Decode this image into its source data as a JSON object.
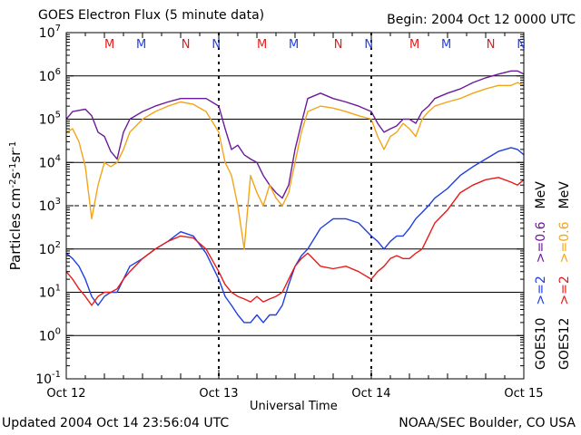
{
  "header": {
    "title": "GOES Electron Flux (5 minute data)",
    "begin": "Begin: 2004 Oct 12 0000 UTC"
  },
  "footer": {
    "updated": "Updated 2004 Oct 14 23:56:04 UTC",
    "credit": "NOAA/SEC Boulder, CO USA"
  },
  "colors": {
    "goes10_2mev": "#1f3fe0",
    "goes10_06mev": "#6a1a9a",
    "goes12_2mev": "#e81a1a",
    "goes12_06mev": "#f2a51a"
  },
  "chart_data": {
    "type": "line",
    "title": "GOES Electron Flux (5 minute data)",
    "xlabel": "Universal Time",
    "ylabel": "Particles cm⁻²s⁻¹sr⁻¹",
    "yscale": "log",
    "ylim": [
      0.1,
      10000000
    ],
    "xlim": [
      0,
      72
    ],
    "x_unit": "hours since 2004 Oct 12 0000 UTC",
    "x_ticks": [
      {
        "x": 0,
        "label": "Oct 12"
      },
      {
        "x": 24,
        "label": "Oct 13"
      },
      {
        "x": 48,
        "label": "Oct 14"
      },
      {
        "x": 72,
        "label": "Oct 15"
      }
    ],
    "y_ticks": [
      0.1,
      1,
      10,
      100,
      1000,
      10000,
      100000,
      1000000,
      10000000
    ],
    "y_tick_labels": [
      {
        "base": "10",
        "exp": "-1"
      },
      {
        "base": "10",
        "exp": "0"
      },
      {
        "base": "10",
        "exp": "1"
      },
      {
        "base": "10",
        "exp": "2"
      },
      {
        "base": "10",
        "exp": "3"
      },
      {
        "base": "10",
        "exp": "4"
      },
      {
        "base": "10",
        "exp": "5"
      },
      {
        "base": "10",
        "exp": "6"
      },
      {
        "base": "10",
        "exp": "7"
      }
    ],
    "grid": true,
    "dashed_gridline_y": 1000,
    "markers": [
      {
        "x": 6.8,
        "label": "M",
        "color": "#e81a1a"
      },
      {
        "x": 11.8,
        "label": "M",
        "color": "#1f3fe0"
      },
      {
        "x": 18.8,
        "label": "N",
        "color": "#e81a1a"
      },
      {
        "x": 23.6,
        "label": "N",
        "color": "#1f3fe0"
      },
      {
        "x": 30.8,
        "label": "M",
        "color": "#e81a1a"
      },
      {
        "x": 35.8,
        "label": "M",
        "color": "#1f3fe0"
      },
      {
        "x": 42.8,
        "label": "N",
        "color": "#e81a1a"
      },
      {
        "x": 47.6,
        "label": "N",
        "color": "#1f3fe0"
      },
      {
        "x": 54.8,
        "label": "M",
        "color": "#e81a1a"
      },
      {
        "x": 59.8,
        "label": "M",
        "color": "#1f3fe0"
      },
      {
        "x": 66.8,
        "label": "N",
        "color": "#e81a1a"
      },
      {
        "x": 71.6,
        "label": "N",
        "color": "#1f3fe0"
      }
    ],
    "legend": [
      {
        "group": "GOES10",
        "entries": [
          {
            "text": ">=2",
            "color": "#1f3fe0"
          },
          {
            "text": ">=0.6",
            "color": "#6a1a9a"
          },
          {
            "text": "MeV",
            "color": "#000000"
          }
        ]
      },
      {
        "group": "GOES12",
        "entries": [
          {
            "text": ">=2",
            "color": "#e81a1a"
          },
          {
            "text": ">=0.6",
            "color": "#f2a51a"
          },
          {
            "text": "MeV",
            "color": "#000000"
          }
        ]
      }
    ],
    "series": [
      {
        "key": "goes10_06mev",
        "color": "#6a1a9a",
        "x": [
          0,
          1,
          2,
          3,
          4,
          5,
          6,
          7,
          8,
          9,
          10,
          12,
          14,
          16,
          18,
          20,
          22,
          24,
          25,
          26,
          27,
          28,
          29,
          30,
          31,
          32,
          33,
          34,
          35,
          36,
          37,
          38,
          40,
          42,
          44,
          46,
          48,
          49,
          50,
          51,
          52,
          53,
          54,
          55,
          56,
          57,
          58,
          60,
          62,
          64,
          66,
          68,
          70,
          71,
          72
        ],
        "y": [
          100000,
          150000,
          160000,
          170000,
          120000,
          50000,
          40000,
          18000,
          12000,
          50000,
          100000,
          150000,
          200000,
          250000,
          300000,
          300000,
          300000,
          200000,
          60000,
          20000,
          25000,
          15000,
          12000,
          10000,
          5000,
          3000,
          2000,
          1500,
          3000,
          20000,
          80000,
          300000,
          400000,
          300000,
          250000,
          200000,
          150000,
          80000,
          50000,
          60000,
          70000,
          100000,
          100000,
          80000,
          150000,
          200000,
          300000,
          400000,
          500000,
          700000,
          900000,
          1100000,
          1300000,
          1300000,
          1100000
        ]
      },
      {
        "key": "goes12_06mev",
        "color": "#f2a51a",
        "x": [
          0,
          1,
          2,
          3,
          4,
          5,
          6,
          7,
          8,
          9,
          10,
          12,
          14,
          16,
          18,
          20,
          22,
          24,
          25,
          26,
          27,
          28,
          29,
          30,
          31,
          32,
          33,
          34,
          35,
          36,
          37,
          38,
          40,
          42,
          44,
          46,
          48,
          49,
          50,
          51,
          52,
          53,
          54,
          55,
          56,
          57,
          58,
          60,
          62,
          64,
          66,
          68,
          70,
          71,
          72
        ],
        "y": [
          50000,
          60000,
          30000,
          8000,
          500,
          3000,
          10000,
          8000,
          10000,
          20000,
          50000,
          100000,
          150000,
          200000,
          250000,
          220000,
          150000,
          50000,
          10000,
          5000,
          1000,
          100,
          5000,
          2000,
          1000,
          3000,
          1500,
          1000,
          2000,
          10000,
          50000,
          150000,
          200000,
          180000,
          150000,
          120000,
          100000,
          40000,
          20000,
          40000,
          50000,
          80000,
          60000,
          40000,
          100000,
          150000,
          200000,
          250000,
          300000,
          400000,
          500000,
          600000,
          600000,
          700000,
          600000
        ]
      },
      {
        "key": "goes10_2mev",
        "color": "#1f3fe0",
        "x": [
          0,
          1,
          2,
          3,
          4,
          5,
          6,
          7,
          8,
          9,
          10,
          12,
          14,
          16,
          18,
          20,
          22,
          24,
          25,
          26,
          27,
          28,
          29,
          30,
          31,
          32,
          33,
          34,
          35,
          36,
          37,
          38,
          40,
          42,
          44,
          46,
          48,
          49,
          50,
          51,
          52,
          53,
          54,
          55,
          56,
          57,
          58,
          60,
          62,
          64,
          66,
          68,
          70,
          71,
          72
        ],
        "y": [
          80,
          60,
          40,
          20,
          8,
          5,
          8,
          10,
          10,
          20,
          40,
          60,
          100,
          150,
          250,
          200,
          80,
          20,
          8,
          5,
          3,
          2,
          2,
          3,
          2,
          3,
          3,
          5,
          15,
          40,
          70,
          100,
          300,
          500,
          500,
          400,
          200,
          150,
          100,
          150,
          200,
          200,
          300,
          500,
          700,
          1000,
          1500,
          2500,
          5000,
          8000,
          12000,
          18000,
          22000,
          20000,
          15000
        ]
      },
      {
        "key": "goes12_2mev",
        "color": "#e81a1a",
        "x": [
          0,
          1,
          2,
          3,
          4,
          5,
          6,
          7,
          8,
          9,
          10,
          12,
          14,
          16,
          18,
          20,
          22,
          24,
          25,
          26,
          27,
          28,
          29,
          30,
          31,
          32,
          33,
          34,
          35,
          36,
          37,
          38,
          40,
          42,
          44,
          46,
          48,
          49,
          50,
          51,
          52,
          53,
          54,
          55,
          56,
          57,
          58,
          60,
          62,
          64,
          66,
          68,
          70,
          71,
          72
        ],
        "y": [
          30,
          20,
          12,
          8,
          5,
          8,
          10,
          10,
          12,
          20,
          30,
          60,
          100,
          150,
          200,
          180,
          100,
          30,
          15,
          10,
          8,
          7,
          6,
          8,
          6,
          7,
          8,
          10,
          20,
          40,
          60,
          80,
          40,
          35,
          40,
          30,
          20,
          30,
          40,
          60,
          70,
          60,
          60,
          80,
          100,
          200,
          400,
          800,
          2000,
          3000,
          4000,
          4500,
          3500,
          3000,
          4000
        ]
      }
    ]
  }
}
